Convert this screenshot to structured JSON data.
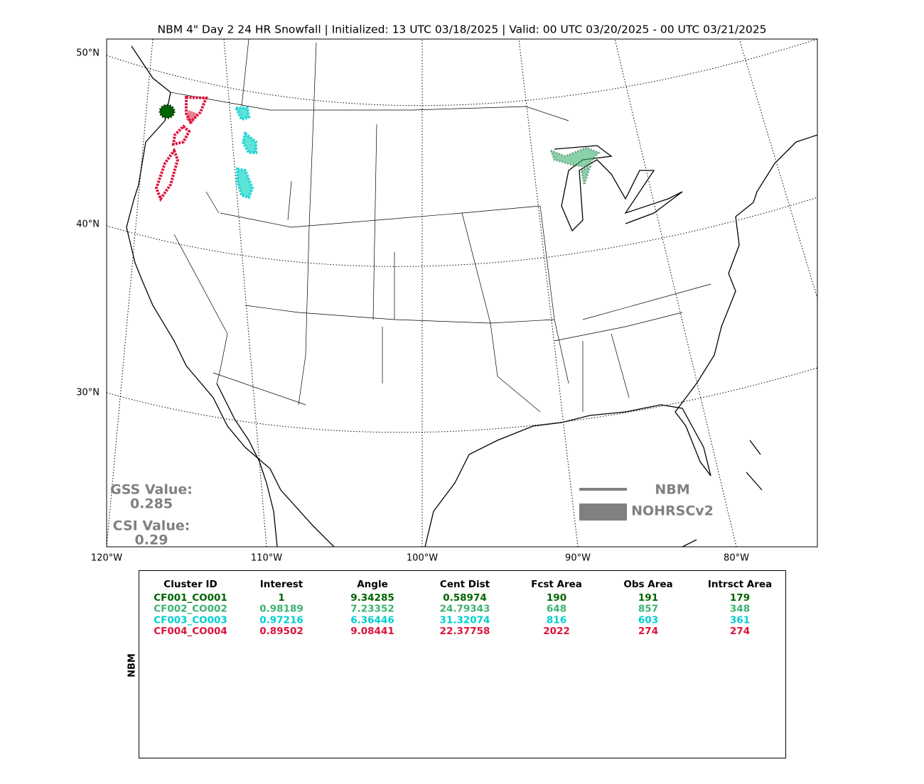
{
  "title": "NBM 4\" Day 2 24 HR Snowfall | Initialized: 13 UTC 03/18/2025 | Valid: 00 UTC 03/20/2025 - 00 UTC 03/21/2025",
  "map": {
    "lat_labels": [
      "50°N",
      "40°N",
      "30°N"
    ],
    "lon_labels": [
      "120°W",
      "110°W",
      "100°W",
      "90°W",
      "80°W"
    ],
    "scores": {
      "gss_label": "GSS Value:",
      "gss_value": "0.285",
      "csi_label": "CSI Value:",
      "csi_value": "0.29"
    },
    "legend": [
      "NBM",
      "NOHRSCv2"
    ]
  },
  "table": {
    "side_label": "NBM",
    "headers": [
      "Cluster ID",
      "Interest",
      "Angle",
      "Cent Dist",
      "Fcst Area",
      "Obs Area",
      "Intrsct Area"
    ],
    "row_colors": [
      "#006400",
      "#3cb371",
      "#00ced1",
      "#dc143c"
    ],
    "rows": [
      [
        "CF001_CO001",
        "1",
        "9.34285",
        "0.58974",
        "190",
        "191",
        "179"
      ],
      [
        "CF002_CO002",
        "0.98189",
        "7.23352",
        "24.79343",
        "648",
        "857",
        "348"
      ],
      [
        "CF003_CO003",
        "0.97216",
        "6.36446",
        "31.32074",
        "816",
        "603",
        "361"
      ],
      [
        "CF004_CO004",
        "0.89502",
        "9.08441",
        "22.37758",
        "2022",
        "274",
        "274"
      ]
    ]
  }
}
